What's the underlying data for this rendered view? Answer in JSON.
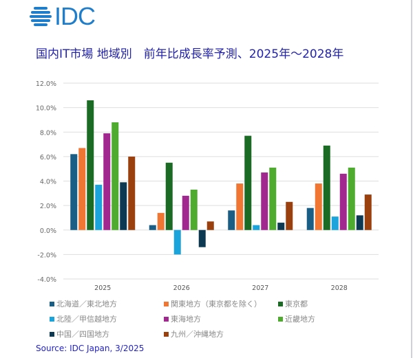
{
  "logo_text": "IDC",
  "title": "国内IT市場 地域別　前年比成長率予測、2025年～2028年",
  "source": "Source: IDC Japan, 3/2025",
  "chart_data": {
    "type": "bar",
    "title": "国内IT市場 地域別　前年比成長率予測、2025年～2028年",
    "xlabel": "",
    "ylabel": "",
    "categories": [
      "2025",
      "2026",
      "2027",
      "2028"
    ],
    "ylim": [
      -4,
      12
    ],
    "yticks": [
      "-4.0%",
      "-2.0%",
      "0.0%",
      "2.0%",
      "4.0%",
      "6.0%",
      "8.0%",
      "10.0%",
      "12.0%"
    ],
    "ytick_values": [
      -4,
      -2,
      0,
      2,
      4,
      6,
      8,
      10,
      12
    ],
    "grid": true,
    "legend_position": "bottom",
    "series": [
      {
        "name": "北海道／東北地方",
        "color": "#1a5e85",
        "values": [
          6.2,
          0.4,
          1.6,
          1.8
        ]
      },
      {
        "name": "関東地方（東京都を除く）",
        "color": "#ef7733",
        "values": [
          6.7,
          1.4,
          3.8,
          3.8
        ]
      },
      {
        "name": "東京都",
        "color": "#1b6b25",
        "values": [
          10.6,
          5.5,
          7.7,
          6.9
        ]
      },
      {
        "name": "北陸／甲信越地方",
        "color": "#1ba3dc",
        "values": [
          3.7,
          -2.0,
          0.4,
          1.1
        ]
      },
      {
        "name": "東海地方",
        "color": "#a0288f",
        "values": [
          7.9,
          2.8,
          4.7,
          4.6
        ]
      },
      {
        "name": "近畿地方",
        "color": "#4fab2f",
        "values": [
          8.8,
          3.3,
          5.1,
          5.1
        ]
      },
      {
        "name": "中国／四国地方",
        "color": "#0d3a52",
        "values": [
          3.9,
          -1.4,
          0.6,
          1.2
        ]
      },
      {
        "name": "九州／沖縄地方",
        "color": "#9a400f",
        "values": [
          6.0,
          0.7,
          2.3,
          2.9
        ]
      }
    ]
  }
}
